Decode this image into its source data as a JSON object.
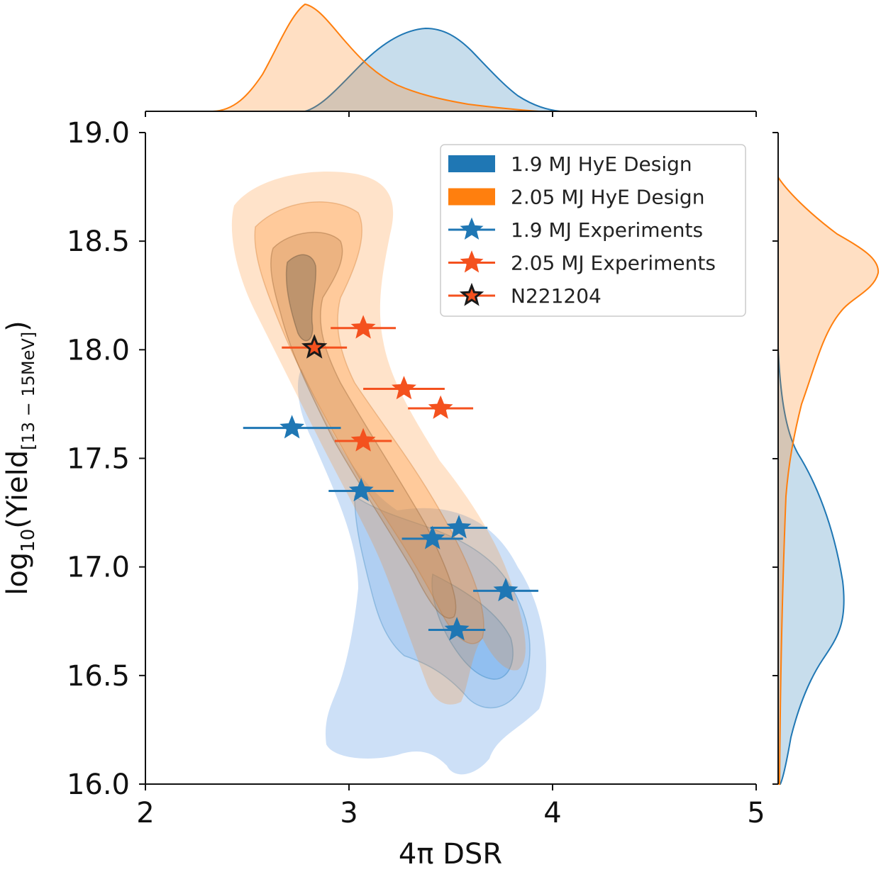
{
  "chart_data": {
    "type": "scatter",
    "xlabel": "4π DSR",
    "ylabel": "log₁₀(Yield[13 − 15MeV])",
    "ylabel_main": "log",
    "ylabel_sub1": "10",
    "ylabel_mid": "(Yield",
    "ylabel_sub2": "[13 − 15MeV]",
    "ylabel_end": ")",
    "xlim": [
      2,
      5
    ],
    "ylim": [
      16.0,
      19.0
    ],
    "x_ticks": [
      "2",
      "3",
      "4",
      "5"
    ],
    "y_ticks": [
      "16.0",
      "16.5",
      "17.0",
      "17.5",
      "18.0",
      "18.5",
      "19.0"
    ],
    "grid": false,
    "legend_position": "top-right",
    "legend": [
      {
        "label": "1.9 MJ HyE Design",
        "kind": "patch",
        "color": "#1f77b4"
      },
      {
        "label": "2.05 MJ HyE Design",
        "kind": "patch",
        "color": "#ff7f0e"
      },
      {
        "label": "1.9 MJ Experiments",
        "kind": "star",
        "color": "#1f77b4"
      },
      {
        "label": "2.05 MJ Experiments",
        "kind": "star",
        "color": "#f4511e"
      },
      {
        "label": "N221204",
        "kind": "star-outline",
        "color": "#f4511e"
      }
    ],
    "colors": {
      "blue": "#1f77b4",
      "orange": "#ff7f0e",
      "red": "#f4511e"
    },
    "series": [
      {
        "name": "1.9 MJ Experiments",
        "color": "#1f77b4",
        "points": [
          {
            "x": 2.72,
            "y": 17.64,
            "xerr": 0.24
          },
          {
            "x": 3.06,
            "y": 17.35,
            "xerr": 0.16
          },
          {
            "x": 3.54,
            "y": 17.18,
            "xerr": 0.14
          },
          {
            "x": 3.41,
            "y": 17.13,
            "xerr": 0.15
          },
          {
            "x": 3.77,
            "y": 16.89,
            "xerr": 0.16
          },
          {
            "x": 3.53,
            "y": 16.71,
            "xerr": 0.14
          }
        ]
      },
      {
        "name": "2.05 MJ Experiments",
        "color": "#f4511e",
        "points": [
          {
            "x": 3.07,
            "y": 18.1,
            "xerr": 0.16
          },
          {
            "x": 3.27,
            "y": 17.82,
            "xerr": 0.2
          },
          {
            "x": 3.45,
            "y": 17.73,
            "xerr": 0.16
          },
          {
            "x": 3.07,
            "y": 17.58,
            "xerr": 0.14
          }
        ]
      },
      {
        "name": "N221204",
        "color": "#f4511e",
        "points": [
          {
            "x": 2.83,
            "y": 18.01,
            "xerr": 0.16
          }
        ]
      }
    ],
    "density": [
      {
        "name": "1.9 MJ HyE Design",
        "color": "#1f77b4"
      },
      {
        "name": "2.05 MJ HyE Design",
        "color": "#ff7f0e"
      }
    ]
  }
}
